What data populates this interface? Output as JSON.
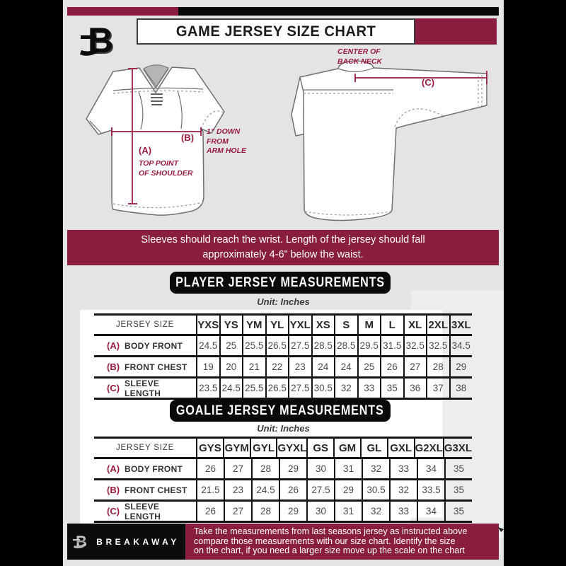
{
  "colors": {
    "background": "#e4e4e6",
    "maroon": "#8a1e3e",
    "annotation_maroon": "#9a1c40",
    "black": "#0a0a0a",
    "panel_white": "#ffffff",
    "watermark_gray": "#ededef"
  },
  "header": {
    "logo_letter": "B",
    "title": "GAME JERSEY SIZE CHART"
  },
  "diagram": {
    "back": {
      "neck_note_line1": "CENTER OF",
      "neck_note_line2": "BACK NECK",
      "c_label": "(C)"
    },
    "front": {
      "b_label": "(B)",
      "b_note_line1": "1” DOWN",
      "b_note_line2": "FROM",
      "b_note_line3": "ARM HOLE",
      "a_label": "(A)",
      "a_note_line1": "TOP POINT",
      "a_note_line2": "OF SHOULDER"
    }
  },
  "notice": {
    "line1": "Sleeves should reach the wrist. Length of the jersey should fall",
    "line2": "approximately 4-6” below the waist."
  },
  "player": {
    "title": "PLAYER JERSEY MEASUREMENTS",
    "unit": "Unit: Inches",
    "table": {
      "corner": "JERSEY SIZE",
      "sizes": [
        "YXS",
        "YS",
        "YM",
        "YL",
        "YXL",
        "XS",
        "S",
        "M",
        "L",
        "XL",
        "2XL",
        "3XL"
      ],
      "rows": [
        {
          "key": "(A)",
          "label": "BODY FRONT",
          "values": [
            "24.5",
            "25",
            "25.5",
            "26.5",
            "27.5",
            "28.5",
            "28.5",
            "29.5",
            "31.5",
            "32.5",
            "32.5",
            "34.5"
          ]
        },
        {
          "key": "(B)",
          "label": "FRONT CHEST",
          "values": [
            "19",
            "20",
            "21",
            "22",
            "23",
            "24",
            "24",
            "25",
            "26",
            "27",
            "28",
            "29"
          ]
        },
        {
          "key": "(C)",
          "label": "SLEEVE LENGTH",
          "values": [
            "23.5",
            "24.5",
            "25.5",
            "26.5",
            "27.5",
            "30.5",
            "32",
            "33",
            "35",
            "36",
            "37",
            "38"
          ]
        }
      ]
    }
  },
  "goalie": {
    "title": "GOALIE JERSEY MEASUREMENTS",
    "unit": "Unit: Inches",
    "table": {
      "corner": "JERSEY SIZE",
      "sizes": [
        "GYS",
        "GYM",
        "GYL",
        "GYXL",
        "GS",
        "GM",
        "GL",
        "GXL",
        "G2XL",
        "G3XL"
      ],
      "rows": [
        {
          "key": "(A)",
          "label": "BODY FRONT",
          "values": [
            "26",
            "27",
            "28",
            "29",
            "30",
            "31",
            "32",
            "33",
            "34",
            "35"
          ]
        },
        {
          "key": "(B)",
          "label": "FRONT CHEST",
          "values": [
            "21.5",
            "23",
            "24.5",
            "26",
            "27.5",
            "29",
            "30.5",
            "32",
            "33.5",
            "35"
          ]
        },
        {
          "key": "(C)",
          "label": "SLEEVE LENGTH",
          "values": [
            "26",
            "27",
            "28",
            "29",
            "30",
            "31",
            "32",
            "33",
            "34",
            "35"
          ]
        }
      ]
    }
  },
  "footer": {
    "logo_letter": "B",
    "brand": "BREAKAWAY",
    "line1": "Take the measurements from last seasons jersey as instructed above",
    "line2": "compare those measurements  with our size chart. Identify the size",
    "line3": "on the chart, if you need a larger size move up the scale on the chart"
  },
  "watermark_letter": "B"
}
